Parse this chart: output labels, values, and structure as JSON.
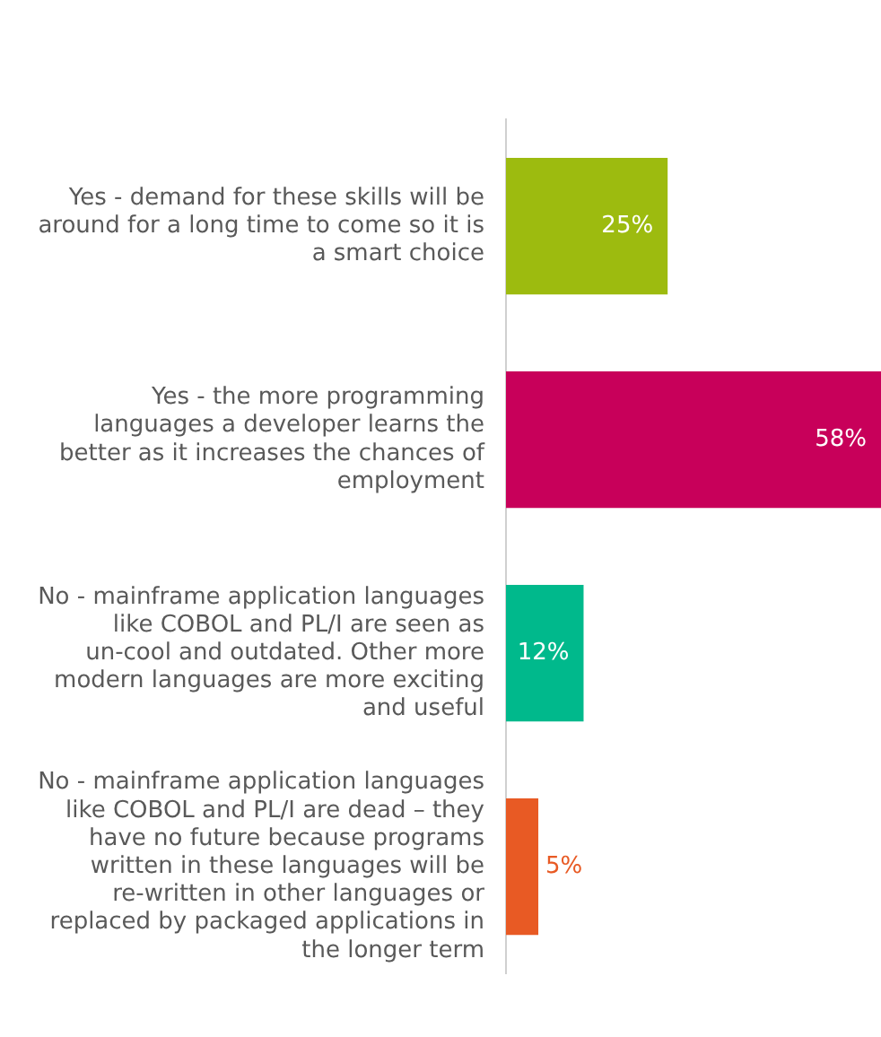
{
  "chart_data": {
    "type": "bar",
    "orientation": "horizontal",
    "categories": [
      "Yes - demand for these skills will be around for a long time to come so it is a smart choice",
      "Yes - the more programming languages a developer learns the better as it increases the chances of employment",
      "No - mainframe application languages like COBOL and PL/I are seen as un-cool and outdated. Other more modern languages are more exciting and useful",
      "No - mainframe application languages like COBOL and PL/I are dead – they have no future because programs written in these languages will be re-written in other languages or replaced by packaged applications in the longer term"
    ],
    "values": [
      25,
      58,
      12,
      5
    ],
    "value_labels": [
      "25%",
      "58%",
      "12%",
      "5%"
    ],
    "colors": [
      "#9dbb0f",
      "#c8005a",
      "#00b98c",
      "#e85a24"
    ],
    "legend": false,
    "grid": false
  }
}
